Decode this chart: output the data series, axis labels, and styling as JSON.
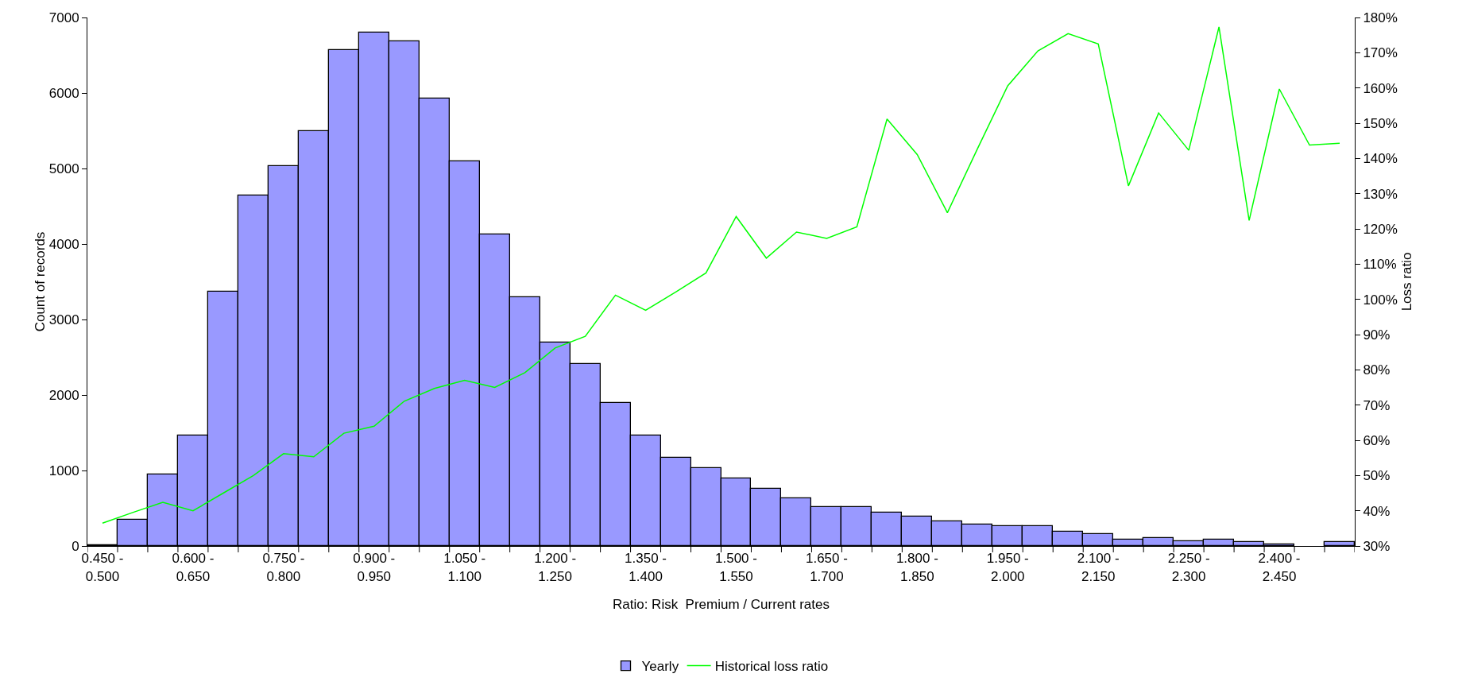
{
  "chart_data": {
    "type": "bar",
    "xlabel": "Ratio: Risk  Premium / Current rates",
    "ylabel": "Count of records",
    "y2label": "Loss ratio",
    "categories": [
      "0.450 -\n0.500",
      null,
      null,
      "0.600 -\n0.650",
      null,
      null,
      "0.750 -\n0.800",
      null,
      null,
      "0.900 -\n0.950",
      null,
      null,
      "1.050 -\n1.100",
      null,
      null,
      "1.200 -\n1.250",
      null,
      null,
      "1.350 -\n1.400",
      null,
      null,
      "1.500 -\n1.550",
      null,
      null,
      "1.650 -\n1.700",
      null,
      null,
      "1.800 -\n1.850",
      null,
      null,
      "1.950 -\n2.000",
      null,
      null,
      "2.100 -\n2.150",
      null,
      null,
      "2.250 -\n2.300",
      null,
      null,
      "2.400 -\n2.450",
      null,
      null
    ],
    "series": [
      {
        "name": "Yearly",
        "color": "#9999ff",
        "values": [
          10,
          350,
          950,
          1460,
          3370,
          4640,
          5030,
          5500,
          6570,
          6800,
          6680,
          5930,
          5100,
          4130,
          3290,
          2700,
          2410,
          1900,
          1460,
          1170,
          1030,
          890,
          760,
          630,
          520,
          520,
          440,
          390,
          330,
          280,
          260,
          260,
          190,
          160,
          80,
          110,
          60,
          80,
          50,
          20,
          0,
          50
        ]
      },
      {
        "name": "Historical loss ratio",
        "type": "line",
        "axis": "y2",
        "color": "#00ff00",
        "values": [
          36.5,
          39.5,
          42.4,
          40.0,
          45.0,
          50.0,
          56.2,
          55.3,
          62.0,
          64.0,
          71.1,
          74.7,
          77.0,
          75.0,
          79.2,
          86.2,
          89.5,
          101.2,
          96.9,
          102.1,
          107.5,
          123.5,
          111.7,
          119.1,
          117.3,
          120.6,
          151.2,
          141.1,
          124.6,
          142.8,
          160.6,
          170.5,
          175.4,
          172.5,
          132.2,
          152.9,
          142.3,
          177.3,
          122.4,
          159.7,
          143.8,
          144.3
        ]
      }
    ],
    "ylim": [
      0,
      7000
    ],
    "yticks": [
      0,
      1000,
      2000,
      3000,
      4000,
      5000,
      6000,
      7000
    ],
    "y2lim": [
      30,
      180
    ],
    "y2ticks": [
      {
        "value": 30,
        "label": "30%"
      },
      {
        "value": 40,
        "label": "40%"
      },
      {
        "value": 50,
        "label": "50%"
      },
      {
        "value": 60,
        "label": "60%"
      },
      {
        "value": 70,
        "label": "70%"
      },
      {
        "value": 80,
        "label": "80%"
      },
      {
        "value": 90,
        "label": "90%"
      },
      {
        "value": 100,
        "label": "100%"
      },
      {
        "value": 110,
        "label": "110%"
      },
      {
        "value": 120,
        "label": "120%"
      },
      {
        "value": 130,
        "label": "130%"
      },
      {
        "value": 140,
        "label": "140%"
      },
      {
        "value": 150,
        "label": "150%"
      },
      {
        "value": 160,
        "label": "160%"
      },
      {
        "value": 170,
        "label": "170%"
      },
      {
        "value": 180,
        "label": "180%"
      }
    ],
    "grid": false,
    "legend": "bottom",
    "marker": "none",
    "line_style": "solid"
  }
}
